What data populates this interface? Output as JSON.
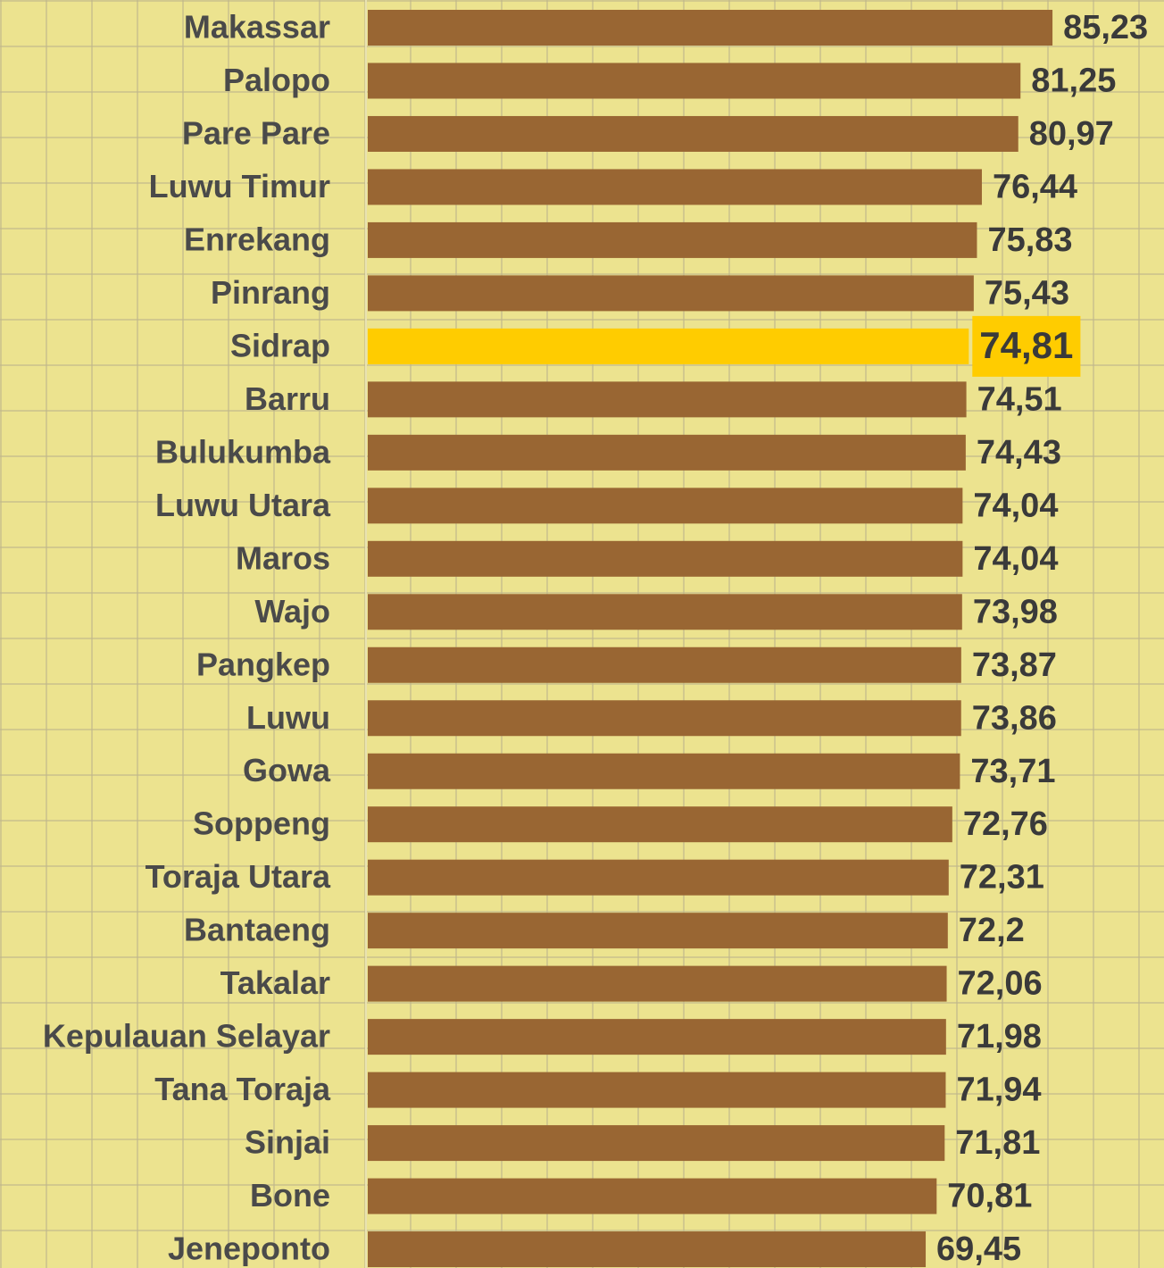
{
  "chart_data": {
    "type": "hbar",
    "categories": [
      "Makassar",
      "Palopo",
      "Pare Pare",
      "Luwu Timur",
      "Enrekang",
      "Pinrang",
      "Sidrap",
      "Barru",
      "Bulukumba",
      "Luwu Utara",
      "Maros",
      "Wajo",
      "Pangkep",
      "Luwu",
      "Gowa",
      "Soppeng",
      "Toraja Utara",
      "Bantaeng",
      "Takalar",
      "Kepulauan Selayar",
      "Tana Toraja",
      "Sinjai",
      "Bone",
      "Jeneponto"
    ],
    "values": [
      85.23,
      81.25,
      80.97,
      76.44,
      75.83,
      75.43,
      74.81,
      74.51,
      74.43,
      74.04,
      74.04,
      73.98,
      73.87,
      73.86,
      73.71,
      72.76,
      72.31,
      72.2,
      72.06,
      71.98,
      71.94,
      71.81,
      70.81,
      69.45
    ],
    "value_labels": [
      "85,23",
      "81,25",
      "80,97",
      "76,44",
      "75,83",
      "75,43",
      "74,81",
      "74,51",
      "74,43",
      "74,04",
      "74,04",
      "73,98",
      "73,87",
      "73,86",
      "73,71",
      "72,76",
      "72,31",
      "72,2",
      "72,06",
      "71,98",
      "71,94",
      "71,81",
      "70,81",
      "69,45"
    ],
    "color": "#996633",
    "highlight": {
      "index": 6,
      "color": "#ffcc00"
    },
    "xlim": [
      0,
      95
    ]
  }
}
